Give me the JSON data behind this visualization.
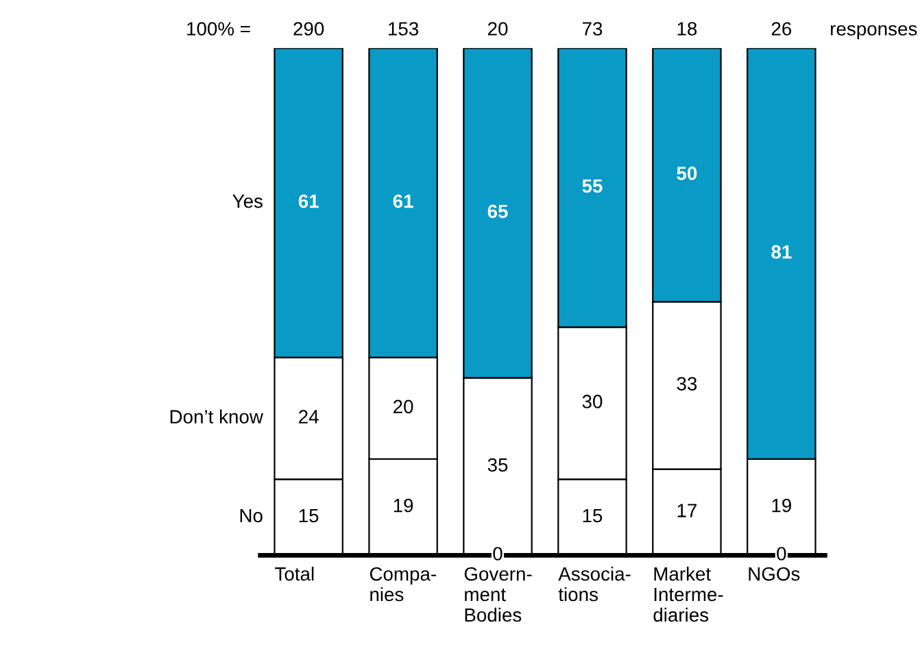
{
  "chart_data": {
    "type": "bar",
    "stacked": true,
    "categories": [
      "Total",
      "Compa-\nnies",
      "Govern-\nment\nBodies",
      "Associa-\ntions",
      "Market\nInterme-\ndiaries",
      "NGOs"
    ],
    "series": [
      {
        "name": "No",
        "color": "#ffffff",
        "values": [
          15,
          19,
          0,
          15,
          17,
          19
        ],
        "value_labels": [
          "15",
          "19",
          null,
          "15",
          "17",
          "19"
        ]
      },
      {
        "name": "Don’t know",
        "color": "#ffffff",
        "values": [
          24,
          20,
          35,
          30,
          33,
          0
        ],
        "value_labels": [
          "24",
          "20",
          "35",
          "30",
          "33",
          null
        ]
      },
      {
        "name": "Yes",
        "color": "#0a9ac6",
        "values": [
          61,
          61,
          65,
          55,
          50,
          81
        ],
        "value_labels": [
          "61",
          "61",
          "65",
          "55",
          "50",
          "81"
        ]
      }
    ],
    "annotations": [
      "100% =",
      "290",
      "153",
      "20",
      "73",
      "18",
      "26",
      "responses",
      {
        "text": "0",
        "x": "Govern-\nment\nBodies",
        "y": 0
      },
      {
        "text": "0",
        "x": "NGOs",
        "y": 0
      }
    ],
    "legend": false,
    "grid": false,
    "tick_labels": "x"
  }
}
